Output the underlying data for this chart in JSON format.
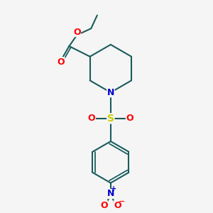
{
  "bg_color": "#f5f5f5",
  "bond_color": "#1a5c5c",
  "bond_width": 1.5,
  "atom_colors": {
    "O": "#ff0000",
    "N": "#0000cc",
    "S": "#cccc00",
    "C": "#1a5c5c"
  },
  "fig_size": [
    3.0,
    3.0
  ],
  "dpi": 100,
  "xlim": [
    0,
    10
  ],
  "ylim": [
    0,
    10
  ]
}
